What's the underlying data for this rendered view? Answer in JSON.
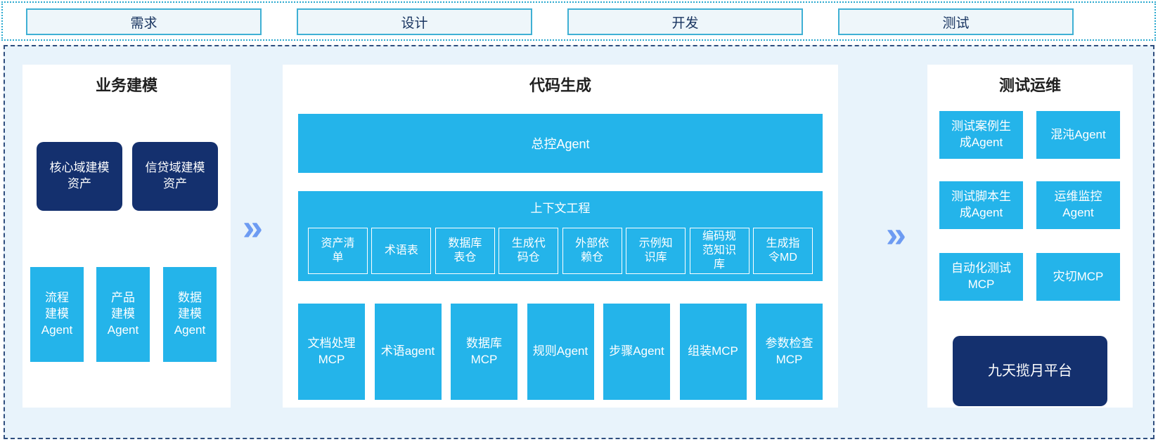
{
  "colors": {
    "cyan": "#24b4ea",
    "navy": "#14306e",
    "arrow_blue": "#6d9bf2",
    "container_bg": "#e8f3fb",
    "phase_border": "#3fb0d4",
    "phase_fill": "#eef6fa"
  },
  "phases": {
    "items": [
      {
        "label": "需求"
      },
      {
        "label": "设计"
      },
      {
        "label": "开发"
      },
      {
        "label": "测试"
      }
    ]
  },
  "arrows": {
    "glyph": "»"
  },
  "modeling": {
    "title": "业务建模",
    "assets": [
      {
        "label": "核心域建模资产"
      },
      {
        "label": "信贷域建模资产"
      }
    ],
    "agents": [
      {
        "label": "流程建模Agent"
      },
      {
        "label": "产品建模Agent"
      },
      {
        "label": "数据建模Agent"
      }
    ]
  },
  "codegen": {
    "title": "代码生成",
    "master_agent": "总控Agent",
    "context": {
      "title": "上下文工程",
      "items": [
        {
          "label": "资产清单"
        },
        {
          "label": "术语表"
        },
        {
          "label": "数据库表仓"
        },
        {
          "label": "生成代码仓"
        },
        {
          "label": "外部依赖仓"
        },
        {
          "label": "示例知识库"
        },
        {
          "label": "编码规范知识库"
        },
        {
          "label": "生成指令MD"
        }
      ]
    },
    "workers": [
      {
        "label": "文档处理MCP"
      },
      {
        "label": "术语agent"
      },
      {
        "label": "数据库MCP"
      },
      {
        "label": "规则Agent"
      },
      {
        "label": "步骤Agent"
      },
      {
        "label": "组装MCP"
      },
      {
        "label": "参数检查MCP"
      }
    ]
  },
  "testops": {
    "title": "测试运维",
    "boxes": [
      {
        "label": "测试案例生成Agent"
      },
      {
        "label": "混沌Agent"
      },
      {
        "label": "测试脚本生成Agent"
      },
      {
        "label": "运维监控Agent"
      },
      {
        "label": "自动化测试MCP"
      },
      {
        "label": "灾切MCP"
      }
    ],
    "platform": "九天揽月平台"
  }
}
